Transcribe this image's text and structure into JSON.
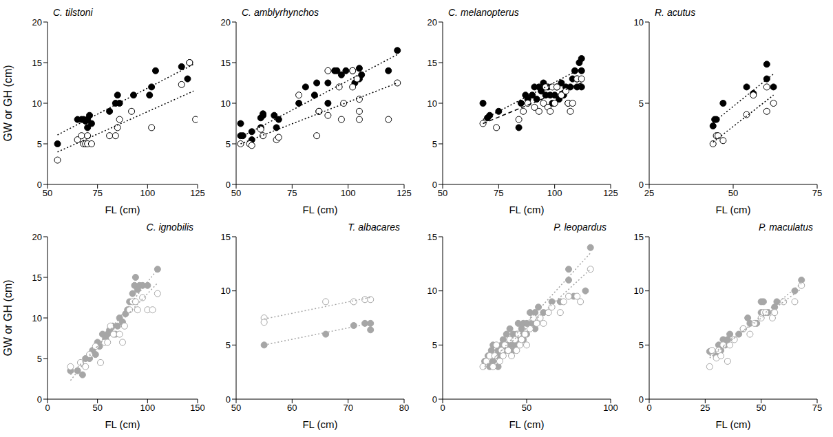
{
  "chart_data": [
    {
      "type": "scatter",
      "title": "C. tilstoni",
      "x_label": "FL (cm)",
      "y_label": "GW or GH (cm)",
      "xlim": [
        50,
        125
      ],
      "xticks": [
        50,
        75,
        100,
        125
      ],
      "ylim": [
        0,
        20
      ],
      "yticks": [
        0,
        5,
        10,
        15,
        20
      ],
      "series": [
        {
          "marker": "filled",
          "color": "#000000",
          "line_style": "dotted",
          "x": [
            55,
            65,
            67,
            68,
            69,
            70,
            70,
            71,
            72,
            81,
            84,
            85,
            86,
            93,
            101,
            102,
            104,
            117,
            120,
            121
          ],
          "values": [
            5,
            8,
            8,
            8,
            7.8,
            8,
            7,
            8.5,
            7.5,
            9,
            10,
            11,
            10,
            11,
            11,
            12,
            14,
            14.5,
            13,
            15
          ],
          "fit": {
            "x": [
              55,
              123
            ],
            "values": [
              6.1,
              14.8
            ]
          }
        },
        {
          "marker": "open",
          "color": "#000000",
          "line_style": "dotted",
          "x": [
            55,
            65,
            67,
            68,
            69,
            70,
            70,
            72,
            81,
            84,
            85,
            86,
            92,
            102,
            117,
            121,
            124
          ],
          "values": [
            3,
            5.5,
            6,
            5,
            5,
            6,
            5,
            5,
            6,
            6,
            7,
            8,
            9,
            7,
            12.3,
            15,
            8
          ],
          "fit": {
            "x": [
              55,
              123
            ],
            "values": [
              4,
              11.5
            ]
          }
        }
      ]
    },
    {
      "type": "scatter",
      "title": "C. amblyrhynchos",
      "x_label": "FL (cm)",
      "xlim": [
        50,
        125
      ],
      "xticks": [
        50,
        75,
        100,
        125
      ],
      "ylim": [
        0,
        20
      ],
      "yticks": [
        0,
        5,
        10,
        15,
        20
      ],
      "series": [
        {
          "marker": "filled",
          "color": "#000000",
          "line_style": "dotted",
          "x": [
            52,
            52,
            53,
            57,
            57,
            61,
            61,
            62,
            62,
            67,
            68,
            69,
            78,
            81,
            85,
            86,
            87,
            91,
            91,
            94,
            95,
            97,
            99,
            102,
            103,
            105,
            105,
            106,
            118,
            122
          ],
          "values": [
            6,
            7.5,
            6,
            6.5,
            5.5,
            8.2,
            7,
            8.5,
            8.7,
            8.5,
            7,
            8,
            10,
            12,
            11,
            12.5,
            9,
            12.5,
            10,
            14,
            14,
            13.5,
            14,
            14,
            12.5,
            13,
            14.3,
            13.5,
            14,
            16.5
          ],
          "fit": {
            "x": [
              52,
              122
            ],
            "values": [
              5.8,
              16
            ]
          }
        },
        {
          "marker": "open",
          "color": "#000000",
          "line_style": "dotted",
          "x": [
            52,
            56,
            57,
            61,
            62,
            68,
            69,
            78,
            86,
            87,
            91,
            91,
            96,
            97,
            98,
            102,
            102,
            104,
            105,
            105,
            105,
            118,
            122
          ],
          "values": [
            5,
            5,
            4.8,
            6.8,
            6,
            5.5,
            5.8,
            11,
            6,
            9,
            14,
            8.5,
            12,
            8,
            10,
            12,
            14,
            13,
            10.5,
            9,
            8,
            8,
            12.5
          ],
          "fit": {
            "x": [
              52,
              122
            ],
            "values": [
              5,
              12.5
            ]
          }
        }
      ]
    },
    {
      "type": "scatter",
      "title": "C. melanopterus",
      "x_label": "FL (cm)",
      "xlim": [
        50,
        125
      ],
      "xticks": [
        50,
        75,
        100,
        125
      ],
      "ylim": [
        0,
        20
      ],
      "yticks": [
        0,
        5,
        10,
        15,
        20
      ],
      "series": [
        {
          "marker": "filled",
          "color": "#000000",
          "line_style": "dotted",
          "x": [
            68,
            70,
            71,
            75,
            84,
            85,
            87,
            88,
            90,
            91,
            92,
            93,
            94,
            95,
            96,
            97,
            98,
            99,
            100,
            101,
            102,
            103,
            104,
            105,
            106,
            107,
            108,
            109,
            110,
            110,
            111,
            112,
            112,
            112
          ],
          "values": [
            10,
            8.2,
            8.5,
            9,
            7,
            10,
            11,
            10.5,
            11,
            12,
            10.5,
            12,
            11.5,
            12.5,
            11,
            12,
            11,
            10,
            11,
            12,
            10.5,
            12.5,
            11,
            12,
            10,
            12,
            13,
            14,
            12,
            13,
            15,
            15.5,
            12,
            14
          ],
          "fit": {
            "x": [
              68,
              112
            ],
            "values": [
              8,
              14.3
            ]
          }
        },
        {
          "marker": "open",
          "color": "#000000",
          "line_style": "dashed",
          "x": [
            68,
            74,
            84,
            86,
            88,
            91,
            93,
            95,
            96,
            97,
            98,
            99,
            100,
            101,
            103,
            105,
            106,
            107,
            108,
            110,
            112
          ],
          "values": [
            7.5,
            7,
            8,
            9,
            10,
            9.5,
            9,
            10,
            12,
            9.5,
            9,
            12,
            10,
            12,
            11,
            11.5,
            10,
            9,
            10,
            13,
            13
          ],
          "fit": {
            "x": [
              68,
              112
            ],
            "values": [
              7.5,
              12.5
            ]
          }
        }
      ]
    },
    {
      "type": "scatter",
      "title": "R. acutus",
      "x_label": "FL (cm)",
      "xlim": [
        25,
        75
      ],
      "xticks": [
        25,
        50,
        75
      ],
      "ylim": [
        0,
        10
      ],
      "yticks": [
        0,
        5,
        10
      ],
      "series": [
        {
          "marker": "filled",
          "color": "#000000",
          "line_style": "dotted",
          "x": [
            44,
            44.5,
            45,
            47,
            54,
            56,
            60,
            60,
            62
          ],
          "values": [
            3.6,
            4,
            4,
            5,
            6,
            5.6,
            7.4,
            6.5,
            6
          ],
          "fit": {
            "x": [
              44,
              62
            ],
            "values": [
              3.8,
              6.8
            ]
          }
        },
        {
          "marker": "open",
          "color": "#000000",
          "line_style": "dotted",
          "x": [
            44,
            45,
            45.5,
            47,
            54,
            56,
            60,
            60,
            62
          ],
          "values": [
            2.5,
            3,
            3,
            2.7,
            4.3,
            5.5,
            4.5,
            6,
            5
          ],
          "fit": {
            "x": [
              44,
              62
            ],
            "values": [
              2.6,
              5.5
            ]
          }
        }
      ]
    },
    {
      "type": "scatter",
      "title": "C. ignobilis",
      "x_label": "FL (cm)",
      "y_label": "GW or GH (cm)",
      "xlim": [
        0,
        150
      ],
      "xticks": [
        0,
        50,
        100,
        150
      ],
      "ylim": [
        0,
        20
      ],
      "yticks": [
        0,
        5,
        10,
        15,
        20
      ],
      "series": [
        {
          "marker": "filled",
          "color": "#a6a6a6",
          "line_style": "dotted",
          "x": [
            23,
            30,
            35,
            38,
            42,
            45,
            48,
            50,
            52,
            55,
            58,
            60,
            62,
            65,
            68,
            70,
            72,
            75,
            78,
            80,
            82,
            85,
            87,
            88,
            90,
            92,
            95,
            100,
            110
          ],
          "values": [
            3.5,
            3.5,
            3,
            5,
            5,
            6,
            5.5,
            7,
            6.5,
            8,
            7.5,
            8,
            8.5,
            9,
            8,
            9,
            10,
            9.5,
            10.5,
            11,
            12,
            13,
            14,
            15,
            13.5,
            14,
            14,
            14,
            16
          ],
          "fit": {
            "x": [
              23,
              110
            ],
            "values": [
              2.3,
              16
            ]
          }
        },
        {
          "marker": "open",
          "color": "#a6a6a6",
          "line_style": "dotted",
          "x": [
            23,
            33,
            38,
            42,
            48,
            53,
            57,
            60,
            63,
            66,
            72,
            75,
            77,
            82,
            85,
            88,
            90,
            95,
            100,
            105,
            110
          ],
          "values": [
            4,
            4.5,
            4,
            5.5,
            6.5,
            4.5,
            7,
            7,
            9,
            8,
            8,
            7,
            9,
            11,
            12,
            12,
            11,
            12.5,
            11,
            11,
            13
          ],
          "fit": {
            "x": [
              23,
              110
            ],
            "values": [
              3,
              14.3
            ]
          }
        }
      ]
    },
    {
      "type": "scatter",
      "title": "T. albacares",
      "x_label": "FL (cm)",
      "xlim": [
        50,
        80
      ],
      "xticks": [
        50,
        60,
        70,
        80
      ],
      "ylim": [
        0,
        15
      ],
      "yticks": [
        0,
        5,
        10,
        15
      ],
      "series": [
        {
          "marker": "open",
          "color": "#a6a6a6",
          "line_style": "dotted",
          "x": [
            55,
            55,
            66,
            71,
            73,
            74
          ],
          "values": [
            7.5,
            7.1,
            9,
            9,
            9.2,
            9.2
          ],
          "fit": {
            "x": [
              55,
              74
            ],
            "values": [
              7.4,
              9.4
            ]
          }
        },
        {
          "marker": "filled",
          "color": "#a6a6a6",
          "line_style": "dotted",
          "x": [
            55,
            66,
            71,
            73,
            74,
            74
          ],
          "values": [
            5,
            6,
            6.8,
            7,
            6.4,
            7
          ],
          "fit": {
            "x": [
              55,
              74
            ],
            "values": [
              5,
              7
            ]
          }
        }
      ]
    },
    {
      "type": "scatter",
      "title": "P. leopardus",
      "x_label": "FL (cm)",
      "xlim": [
        0,
        100
      ],
      "xticks": [
        0,
        50,
        100
      ],
      "ylim": [
        0,
        15
      ],
      "yticks": [
        0,
        5,
        10,
        15
      ],
      "series": [
        {
          "marker": "filled",
          "color": "#a6a6a6",
          "line_style": "dotted",
          "x": [
            25,
            27,
            28,
            29,
            30,
            30,
            32,
            33,
            33,
            35,
            35,
            36,
            37,
            38,
            38,
            40,
            40,
            41,
            42,
            42,
            43,
            44,
            45,
            45,
            46,
            47,
            48,
            48,
            50,
            50,
            52,
            53,
            55,
            55,
            57,
            60,
            65,
            70,
            75,
            75,
            78,
            85,
            88
          ],
          "values": [
            3.5,
            4,
            3,
            4.5,
            3.5,
            5,
            4,
            4.5,
            3,
            5,
            4,
            5.5,
            4.5,
            5,
            6,
            5,
            6.5,
            5.5,
            6,
            4.5,
            5,
            6,
            7,
            5.5,
            6,
            6.5,
            7,
            5.5,
            7,
            6,
            8,
            7,
            6.5,
            8,
            8.5,
            8,
            9,
            9,
            12,
            11,
            9.5,
            10,
            14
          ],
          "fit": {
            "x": [
              25,
              88
            ],
            "values": [
              2.8,
              13.5
            ]
          }
        },
        {
          "marker": "open",
          "color": "#a6a6a6",
          "line_style": "dotted",
          "x": [
            24,
            26,
            28,
            30,
            31,
            32,
            34,
            35,
            36,
            37,
            39,
            40,
            41,
            43,
            44,
            45,
            46,
            47,
            49,
            50,
            52,
            54,
            56,
            58,
            60,
            63,
            65,
            70,
            72,
            75,
            80,
            82,
            88
          ],
          "values": [
            3,
            3.5,
            4,
            3,
            4,
            5,
            3.5,
            4.5,
            4,
            5,
            4.5,
            5.5,
            4,
            5.5,
            4.5,
            6,
            5,
            5.5,
            6,
            5,
            6.5,
            7.5,
            7,
            7.5,
            7,
            8,
            8.5,
            8,
            9,
            9.5,
            9.5,
            9,
            12
          ],
          "fit": {
            "x": [
              25,
              88
            ],
            "values": [
              3,
              12
            ]
          }
        }
      ]
    },
    {
      "type": "scatter",
      "title": "P. maculatus",
      "x_label": "FL (cm)",
      "xlim": [
        0,
        75
      ],
      "xticks": [
        0,
        25,
        50,
        75
      ],
      "ylim": [
        0,
        15
      ],
      "yticks": [
        0,
        5,
        10,
        15
      ],
      "series": [
        {
          "marker": "filled",
          "color": "#a6a6a6",
          "line_style": "dotted",
          "x": [
            27,
            30,
            31,
            32,
            33,
            34,
            35,
            36,
            40,
            42,
            44,
            45,
            48,
            50,
            50,
            51,
            53,
            56,
            57,
            65,
            68
          ],
          "values": [
            4.4,
            4,
            5,
            4.5,
            5.5,
            5,
            5.5,
            6,
            6,
            6.5,
            7.5,
            7,
            7,
            8,
            9,
            9,
            8,
            8.5,
            9,
            10,
            11
          ],
          "fit": {
            "x": [
              27,
              68
            ],
            "values": [
              3.8,
              10.7
            ]
          }
        },
        {
          "marker": "open",
          "color": "#a6a6a6",
          "line_style": "dotted",
          "x": [
            27,
            28,
            30,
            31,
            32,
            33,
            35,
            36,
            38,
            42,
            45,
            47,
            50,
            51,
            52,
            55,
            56,
            60,
            65,
            68
          ],
          "values": [
            3,
            4.5,
            3.8,
            4.5,
            4,
            5,
            3.5,
            5,
            5.5,
            6.5,
            6,
            7,
            7.5,
            8,
            8,
            7.5,
            8,
            9,
            9,
            10.5
          ],
          "fit": {
            "x": [
              27,
              68
            ],
            "values": [
              4,
              10.2
            ]
          }
        }
      ]
    }
  ]
}
